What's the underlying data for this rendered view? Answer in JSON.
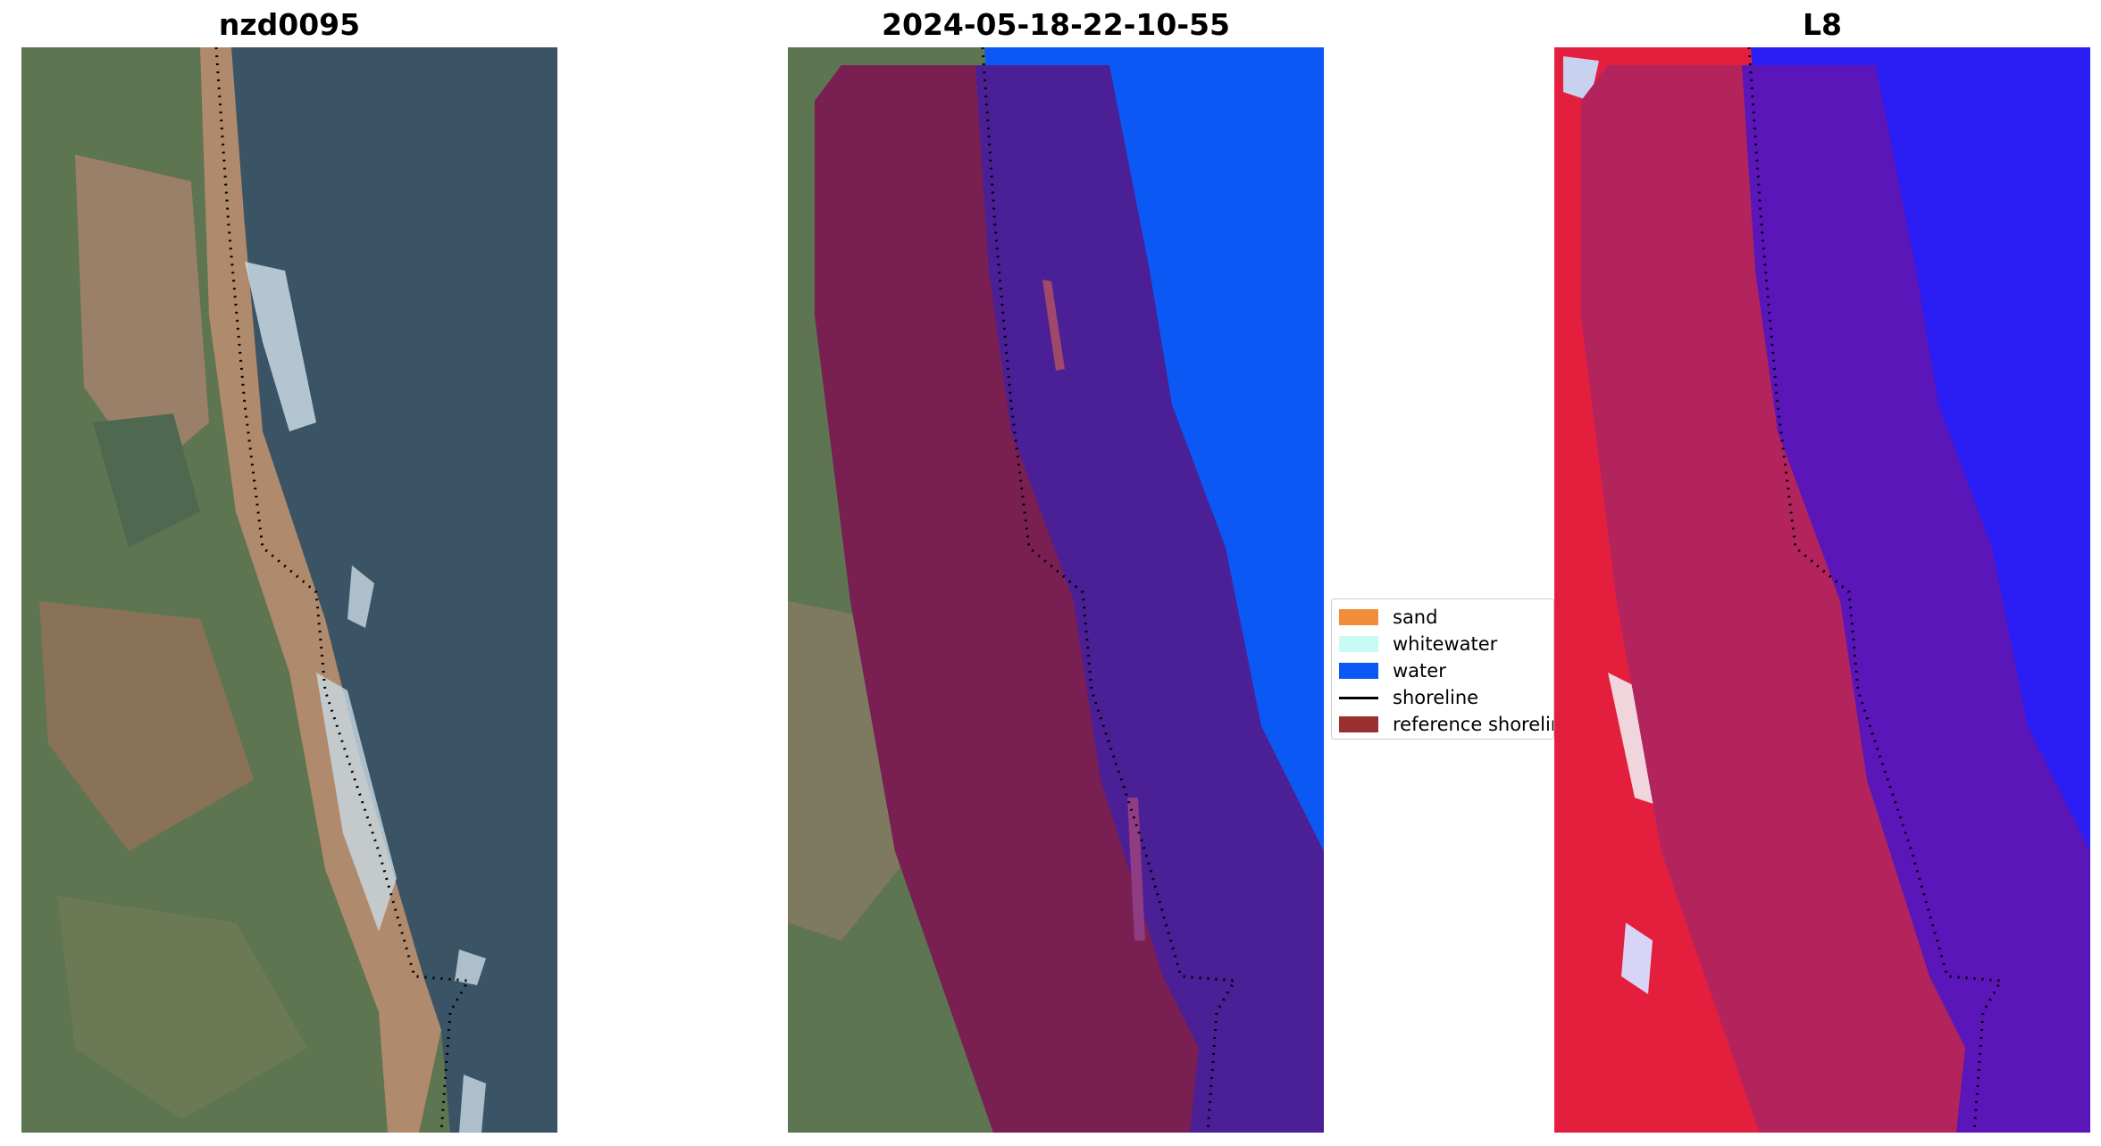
{
  "panels": [
    {
      "title": "nzd0095"
    },
    {
      "title": "2024-05-18-22-10-55"
    },
    {
      "title": "L8"
    }
  ],
  "legend": {
    "items": [
      {
        "label": "sand",
        "color": "#f28d3c",
        "kind": "patch"
      },
      {
        "label": "whitewater",
        "color": "#c7fbf6",
        "kind": "patch"
      },
      {
        "label": "water",
        "color": "#0b58f5",
        "kind": "patch"
      },
      {
        "label": "shoreline",
        "color": "#000000",
        "kind": "line"
      },
      {
        "label": "reference shoreline",
        "color": "#9a2f30",
        "kind": "patch"
      }
    ]
  },
  "colors": {
    "sea": "#3a5466",
    "land_green": "#5d7550",
    "land_tan": "#9a8068",
    "water_class": "#0b58f5",
    "buffer_land": "#7a1f52",
    "buffer_water": "#4b1f95",
    "index_land": "#e41f3e",
    "index_water": "#3a0cf0"
  }
}
